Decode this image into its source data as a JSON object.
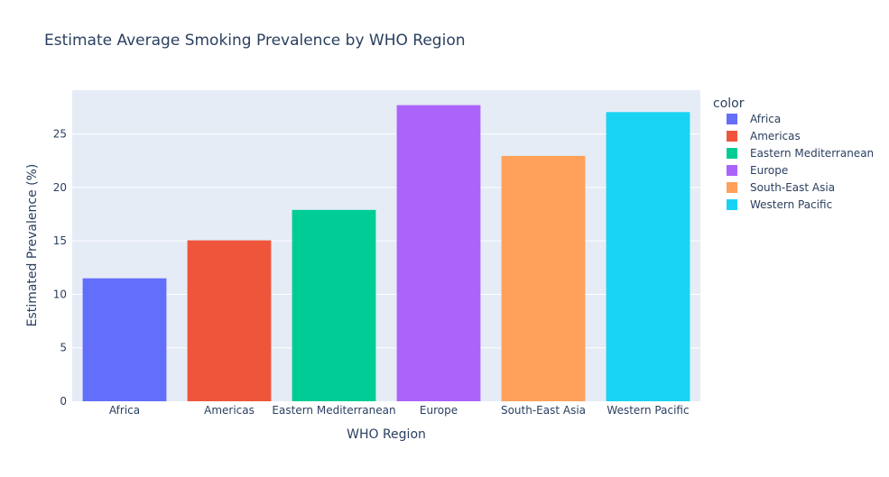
{
  "chart_data": {
    "type": "bar",
    "title": "Estimate Average Smoking Prevalence by WHO Region",
    "xlabel": "WHO Region",
    "ylabel": "Estimated Prevalence (%)",
    "categories": [
      "Africa",
      "Americas",
      "Eastern Mediterranean",
      "Europe",
      "South-East Asia",
      "Western Pacific"
    ],
    "values": [
      11.5,
      15.05,
      17.9,
      27.7,
      22.95,
      27.05
    ],
    "colors": [
      "#636efa",
      "#EF553B",
      "#00cc96",
      "#ab63fa",
      "#FFA15A",
      "#19d3f3"
    ],
    "ylim": [
      0,
      29.1
    ],
    "yticks": [
      0,
      5,
      10,
      15,
      20,
      25
    ],
    "grid": true,
    "legend": {
      "title": "color",
      "placement": "right",
      "entries": [
        "Africa",
        "Americas",
        "Eastern Mediterranean",
        "Europe",
        "South-East Asia",
        "Western Pacific"
      ]
    },
    "plot_background": "#e5ecf6"
  }
}
